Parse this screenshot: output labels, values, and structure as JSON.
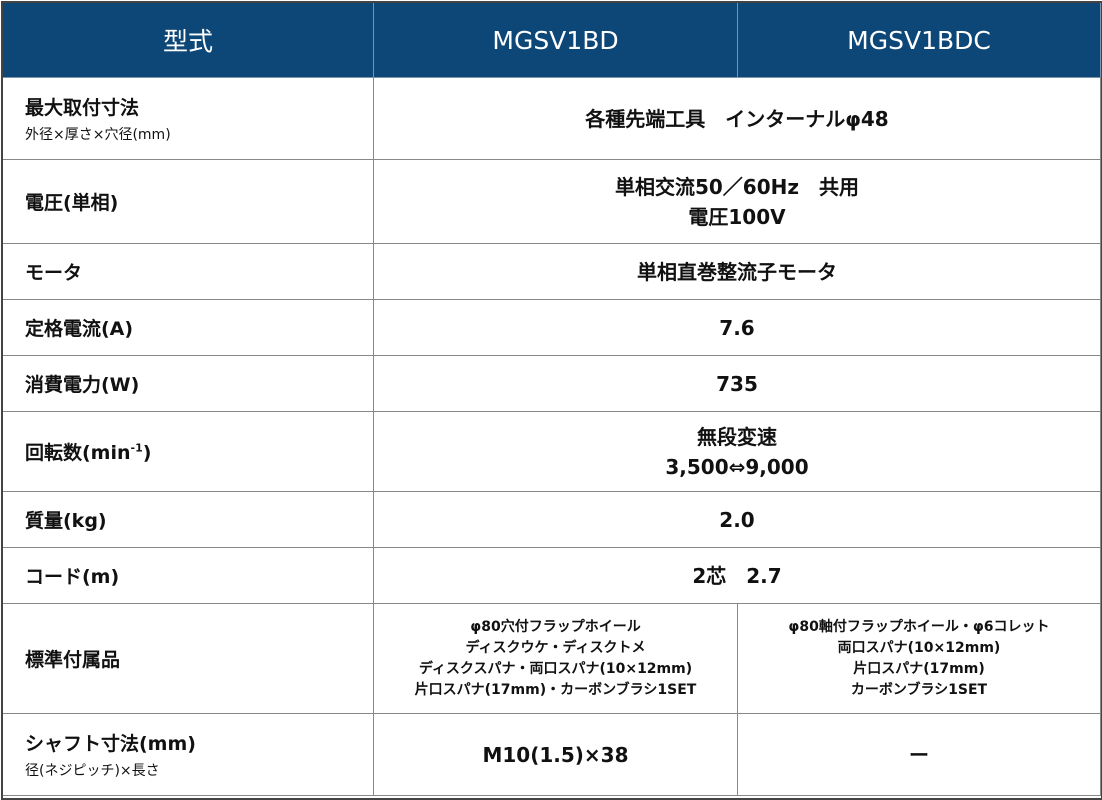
{
  "header": {
    "label": "型式",
    "models": [
      "MGSV1BD",
      "MGSV1BDC"
    ]
  },
  "rows": [
    {
      "label": "最大取付寸法",
      "sub": "外径×厚さ×穴径(mm)",
      "value": "各種先端工具　インターナルφ48"
    },
    {
      "label": "電圧(単相)",
      "value_lines": [
        "単相交流50／60Hz　共用",
        "電圧100V"
      ]
    },
    {
      "label": "モータ",
      "value": "単相直巻整流子モータ"
    },
    {
      "label": "定格電流(A)",
      "value": "7.6"
    },
    {
      "label": "消費電力(W)",
      "value": "735"
    },
    {
      "label": "回転数(min",
      "label_sup": "-1",
      "label_end": ")",
      "value_lines": [
        "無段変速",
        "3,500⇔9,000"
      ]
    },
    {
      "label": "質量(kg)",
      "value": "2.0"
    },
    {
      "label": "コード(m)",
      "value": "2芯　2.7"
    },
    {
      "label": "標準付属品",
      "values": [
        [
          "φ80穴付フラップホイール",
          "ディスクウケ・ディスクトメ",
          "ディスクスパナ・両口スパナ(10×12mm)",
          "片口スパナ(17mm)・カーボンブラシ1SET"
        ],
        [
          "φ80軸付フラップホイール・φ6コレット",
          "両口スパナ(10×12mm)",
          "片口スパナ(17mm)",
          "カーボンブラシ1SET"
        ]
      ]
    },
    {
      "label": "シャフト寸法(mm)",
      "sub": "径(ネジピッチ)×長さ",
      "values": [
        "M10(1.5)×38",
        "ー"
      ]
    }
  ],
  "colors": {
    "header_bg": "#0c4778",
    "header_text": "#ffffff"
  }
}
